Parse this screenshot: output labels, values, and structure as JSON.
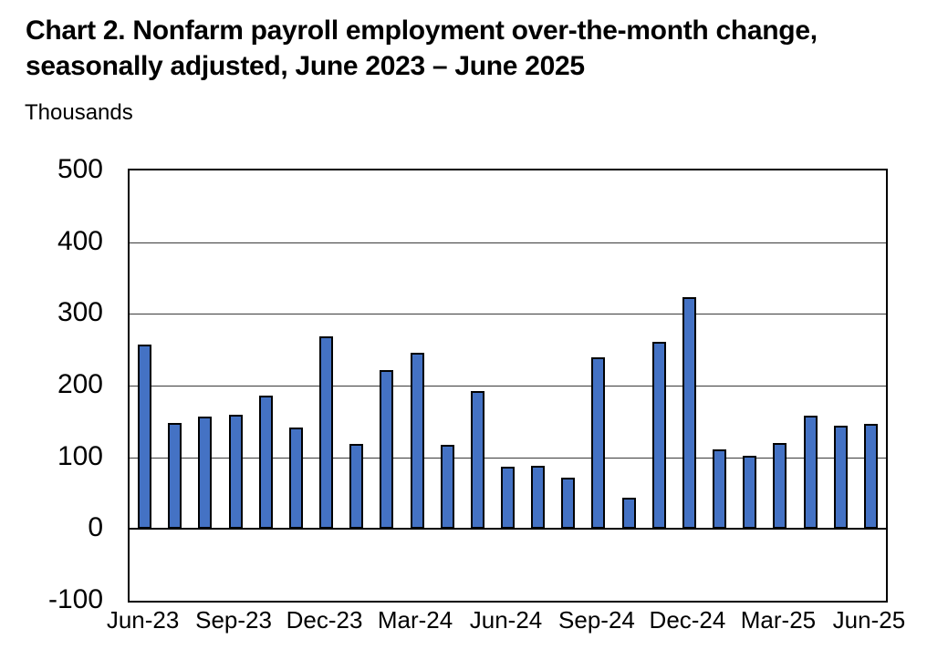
{
  "title": {
    "line1": "Chart 2. Nonfarm payroll employment over-the-month change,",
    "line2": "seasonally adjusted, June 2023 – June 2025"
  },
  "unit_label": "Thousands",
  "colors": {
    "bar_fill": "#4472C4",
    "bar_border": "#000000",
    "gridline": "#3a3a3a",
    "axis": "#000000",
    "text": "#000000",
    "background": "#ffffff"
  },
  "chart_data": {
    "type": "bar",
    "title": "Chart 2. Nonfarm payroll employment over-the-month change, seasonally adjusted, June 2023 – June 2025",
    "ylabel": "Thousands",
    "xlabel": "",
    "ylim": [
      -100,
      500
    ],
    "y_ticks": [
      500,
      400,
      300,
      200,
      100,
      0,
      -100
    ],
    "grid": "horizontal",
    "legend_position": "none",
    "categories": [
      "Jun-23",
      "Jul-23",
      "Aug-23",
      "Sep-23",
      "Oct-23",
      "Nov-23",
      "Dec-23",
      "Jan-24",
      "Feb-24",
      "Mar-24",
      "Apr-24",
      "May-24",
      "Jun-24",
      "Jul-24",
      "Aug-24",
      "Sep-24",
      "Oct-24",
      "Nov-24",
      "Dec-24",
      "Jan-25",
      "Feb-25",
      "Mar-25",
      "Apr-25",
      "May-25",
      "Jun-25"
    ],
    "values": [
      257,
      148,
      157,
      159,
      186,
      142,
      269,
      119,
      222,
      246,
      118,
      193,
      87,
      88,
      71,
      240,
      44,
      261,
      323,
      111,
      102,
      120,
      158,
      144,
      147
    ],
    "x_tick_every": 3,
    "x_tick_labels": [
      "Jun-23",
      "Sep-23",
      "Dec-23",
      "Mar-24",
      "Jun-24",
      "Sep-24",
      "Dec-24",
      "Mar-25",
      "Jun-25"
    ]
  }
}
